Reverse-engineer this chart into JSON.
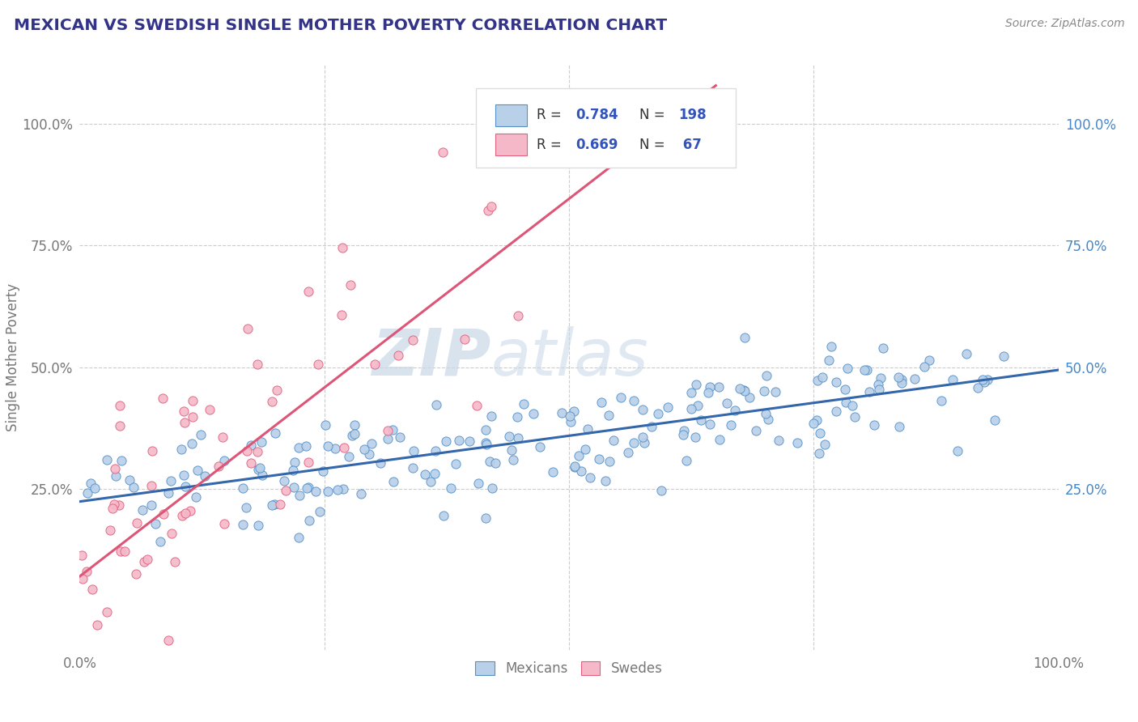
{
  "title": "MEXICAN VS SWEDISH SINGLE MOTHER POVERTY CORRELATION CHART",
  "source": "Source: ZipAtlas.com",
  "ylabel": "Single Mother Poverty",
  "watermark_zip": "ZIP",
  "watermark_atlas": "atlas",
  "blue_R": 0.784,
  "blue_N": 198,
  "pink_R": 0.669,
  "pink_N": 67,
  "blue_color": "#b8d0e8",
  "pink_color": "#f5b8c8",
  "blue_edge_color": "#5590c8",
  "pink_edge_color": "#e06080",
  "blue_line_color": "#3366aa",
  "pink_line_color": "#dd5577",
  "title_color": "#333388",
  "source_color": "#888888",
  "tick_color": "#777777",
  "grid_color": "#cccccc",
  "watermark_color": "#c8d8e8",
  "legend_border_color": "#dddddd",
  "legend_text_color": "#333333",
  "legend_num_color": "#3355bb",
  "background_color": "#ffffff",
  "xlim": [
    0.0,
    1.0
  ],
  "ylim": [
    -0.08,
    1.12
  ],
  "ytick_positions": [
    0.25,
    0.5,
    0.75,
    1.0
  ],
  "ytick_labels_left": [
    "25.0%",
    "50.0%",
    "75.0%",
    "100.0%"
  ],
  "ytick_labels_right": [
    "25.0%",
    "50.0%",
    "75.0%",
    "100.0%"
  ],
  "xtick_positions": [
    0.0,
    0.25,
    0.5,
    0.75,
    1.0
  ],
  "xtick_labels": [
    "0.0%",
    "",
    "",
    "",
    "100.0%"
  ]
}
